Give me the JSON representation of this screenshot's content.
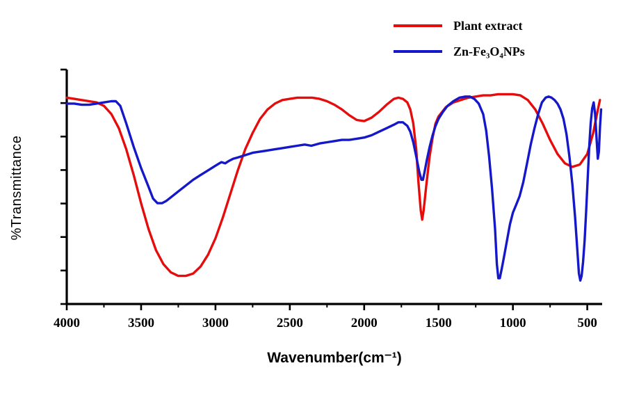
{
  "figure": {
    "background": "#ffffff",
    "axis_color": "#000000"
  },
  "chart_data": {
    "type": "line",
    "title": "",
    "xlabel": "Wavenumber(cm⁻¹)",
    "ylabel": "%Transmittance",
    "x_range": [
      4000,
      400
    ],
    "x_axis_reversed": true,
    "y_range": [
      0,
      100
    ],
    "y_tick_labels_shown": false,
    "y_tick_count": 8,
    "x_ticks": [
      4000,
      3500,
      3000,
      2500,
      2000,
      1500,
      1000,
      500
    ],
    "x_minor_ticks": [
      3750,
      3250,
      2750,
      2250,
      1750,
      1250,
      750
    ],
    "grid": false,
    "legend_position": "top-right-outside",
    "axis_color": "#000000",
    "series": [
      {
        "name": "Plant extract",
        "color": "#e60c0c",
        "points": [
          [
            4000,
            88
          ],
          [
            3950,
            87.5
          ],
          [
            3900,
            87
          ],
          [
            3850,
            86.5
          ],
          [
            3800,
            86
          ],
          [
            3750,
            84.5
          ],
          [
            3700,
            81
          ],
          [
            3650,
            75
          ],
          [
            3600,
            66
          ],
          [
            3550,
            55
          ],
          [
            3500,
            43
          ],
          [
            3450,
            32
          ],
          [
            3400,
            23
          ],
          [
            3350,
            17
          ],
          [
            3300,
            13.5
          ],
          [
            3250,
            12
          ],
          [
            3200,
            12
          ],
          [
            3150,
            13
          ],
          [
            3100,
            16
          ],
          [
            3050,
            21
          ],
          [
            3000,
            28
          ],
          [
            2950,
            37
          ],
          [
            2900,
            47
          ],
          [
            2850,
            57
          ],
          [
            2800,
            66
          ],
          [
            2750,
            73
          ],
          [
            2700,
            79
          ],
          [
            2650,
            83
          ],
          [
            2600,
            85.5
          ],
          [
            2550,
            87
          ],
          [
            2500,
            87.5
          ],
          [
            2450,
            88
          ],
          [
            2400,
            88
          ],
          [
            2350,
            88
          ],
          [
            2300,
            87.5
          ],
          [
            2250,
            86.5
          ],
          [
            2200,
            85
          ],
          [
            2150,
            83
          ],
          [
            2100,
            80.5
          ],
          [
            2050,
            78.5
          ],
          [
            2000,
            78
          ],
          [
            1950,
            79.5
          ],
          [
            1900,
            82
          ],
          [
            1850,
            85
          ],
          [
            1800,
            87.5
          ],
          [
            1770,
            88
          ],
          [
            1740,
            87.5
          ],
          [
            1710,
            86
          ],
          [
            1690,
            83
          ],
          [
            1670,
            77
          ],
          [
            1650,
            66
          ],
          [
            1635,
            52
          ],
          [
            1620,
            40
          ],
          [
            1610,
            36
          ],
          [
            1600,
            40
          ],
          [
            1580,
            52
          ],
          [
            1560,
            63
          ],
          [
            1540,
            71
          ],
          [
            1520,
            77
          ],
          [
            1500,
            80
          ],
          [
            1450,
            84
          ],
          [
            1400,
            86
          ],
          [
            1350,
            87
          ],
          [
            1300,
            88
          ],
          [
            1250,
            88.5
          ],
          [
            1200,
            89
          ],
          [
            1150,
            89
          ],
          [
            1100,
            89.5
          ],
          [
            1050,
            89.5
          ],
          [
            1000,
            89.5
          ],
          [
            950,
            89
          ],
          [
            900,
            87
          ],
          [
            850,
            83
          ],
          [
            800,
            77
          ],
          [
            750,
            70
          ],
          [
            700,
            64
          ],
          [
            650,
            60
          ],
          [
            600,
            58.5
          ],
          [
            550,
            59.5
          ],
          [
            500,
            64
          ],
          [
            460,
            73
          ],
          [
            435,
            81
          ],
          [
            415,
            87
          ]
        ]
      },
      {
        "name": "Zn-Fe₃O₄NPs",
        "color": "#1418c8",
        "points": [
          [
            4000,
            85.5
          ],
          [
            3950,
            85.5
          ],
          [
            3900,
            85
          ],
          [
            3850,
            85
          ],
          [
            3800,
            85.5
          ],
          [
            3750,
            86
          ],
          [
            3700,
            86.5
          ],
          [
            3670,
            86.5
          ],
          [
            3640,
            84.5
          ],
          [
            3600,
            77
          ],
          [
            3550,
            67
          ],
          [
            3500,
            58
          ],
          [
            3450,
            50
          ],
          [
            3420,
            45
          ],
          [
            3390,
            43
          ],
          [
            3360,
            43
          ],
          [
            3330,
            44
          ],
          [
            3300,
            45.5
          ],
          [
            3250,
            48
          ],
          [
            3200,
            50.5
          ],
          [
            3150,
            53
          ],
          [
            3100,
            55
          ],
          [
            3050,
            57
          ],
          [
            3000,
            59
          ],
          [
            2960,
            60.5
          ],
          [
            2935,
            60
          ],
          [
            2910,
            61
          ],
          [
            2880,
            62
          ],
          [
            2850,
            62.5
          ],
          [
            2800,
            63.5
          ],
          [
            2750,
            64.5
          ],
          [
            2700,
            65
          ],
          [
            2650,
            65.5
          ],
          [
            2600,
            66
          ],
          [
            2550,
            66.5
          ],
          [
            2500,
            67
          ],
          [
            2450,
            67.5
          ],
          [
            2400,
            68
          ],
          [
            2355,
            67.5
          ],
          [
            2300,
            68.5
          ],
          [
            2250,
            69
          ],
          [
            2200,
            69.5
          ],
          [
            2150,
            70
          ],
          [
            2100,
            70
          ],
          [
            2050,
            70.5
          ],
          [
            2000,
            71
          ],
          [
            1950,
            72
          ],
          [
            1900,
            73.5
          ],
          [
            1850,
            75
          ],
          [
            1800,
            76.5
          ],
          [
            1770,
            77.5
          ],
          [
            1740,
            77.5
          ],
          [
            1710,
            76
          ],
          [
            1690,
            73.5
          ],
          [
            1670,
            69
          ],
          [
            1650,
            63
          ],
          [
            1630,
            56.5
          ],
          [
            1615,
            53
          ],
          [
            1605,
            53
          ],
          [
            1595,
            56
          ],
          [
            1580,
            61
          ],
          [
            1560,
            67
          ],
          [
            1540,
            72
          ],
          [
            1520,
            76
          ],
          [
            1500,
            79
          ],
          [
            1470,
            82
          ],
          [
            1440,
            84.5
          ],
          [
            1400,
            86.5
          ],
          [
            1360,
            88
          ],
          [
            1320,
            88.5
          ],
          [
            1290,
            88.5
          ],
          [
            1260,
            87.5
          ],
          [
            1230,
            85.5
          ],
          [
            1200,
            81
          ],
          [
            1180,
            74
          ],
          [
            1160,
            63
          ],
          [
            1140,
            49
          ],
          [
            1120,
            32
          ],
          [
            1108,
            17
          ],
          [
            1098,
            11
          ],
          [
            1088,
            11
          ],
          [
            1075,
            15
          ],
          [
            1060,
            20
          ],
          [
            1040,
            27
          ],
          [
            1020,
            34
          ],
          [
            1000,
            39
          ],
          [
            980,
            42
          ],
          [
            955,
            46
          ],
          [
            930,
            52
          ],
          [
            905,
            60
          ],
          [
            880,
            68
          ],
          [
            855,
            75
          ],
          [
            830,
            81
          ],
          [
            805,
            86
          ],
          [
            780,
            88
          ],
          [
            760,
            88.5
          ],
          [
            740,
            88
          ],
          [
            720,
            87
          ],
          [
            700,
            85.5
          ],
          [
            680,
            83
          ],
          [
            660,
            79
          ],
          [
            640,
            72.5
          ],
          [
            620,
            63
          ],
          [
            600,
            51
          ],
          [
            582,
            37
          ],
          [
            568,
            24
          ],
          [
            556,
            13
          ],
          [
            547,
            10
          ],
          [
            538,
            12
          ],
          [
            528,
            18
          ],
          [
            518,
            27
          ],
          [
            508,
            39
          ],
          [
            497,
            54
          ],
          [
            487,
            67
          ],
          [
            477,
            77
          ],
          [
            467,
            83.5
          ],
          [
            457,
            86
          ],
          [
            447,
            81
          ],
          [
            437,
            70
          ],
          [
            429,
            62
          ],
          [
            422,
            65
          ],
          [
            414,
            76
          ],
          [
            407,
            83
          ]
        ]
      }
    ]
  }
}
